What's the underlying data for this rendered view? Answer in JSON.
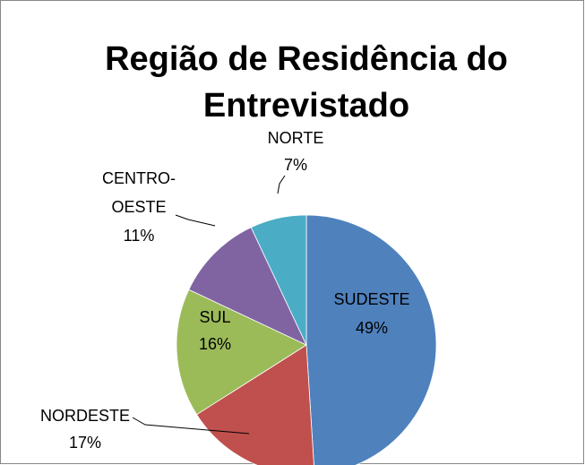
{
  "chart_data": {
    "type": "pie",
    "title": "Região de Residência do Entrevistado",
    "categories": [
      "SUDESTE",
      "NORDESTE",
      "SUL",
      "CENTRO-OESTE",
      "NORTE"
    ],
    "values": [
      49,
      17,
      16,
      11,
      7
    ],
    "value_labels": [
      "49%",
      "17%",
      "16%",
      "11%",
      "7%"
    ],
    "colors": [
      "#4f81bd",
      "#c0504d",
      "#9bbb59",
      "#8064a2",
      "#4bacc6"
    ]
  }
}
